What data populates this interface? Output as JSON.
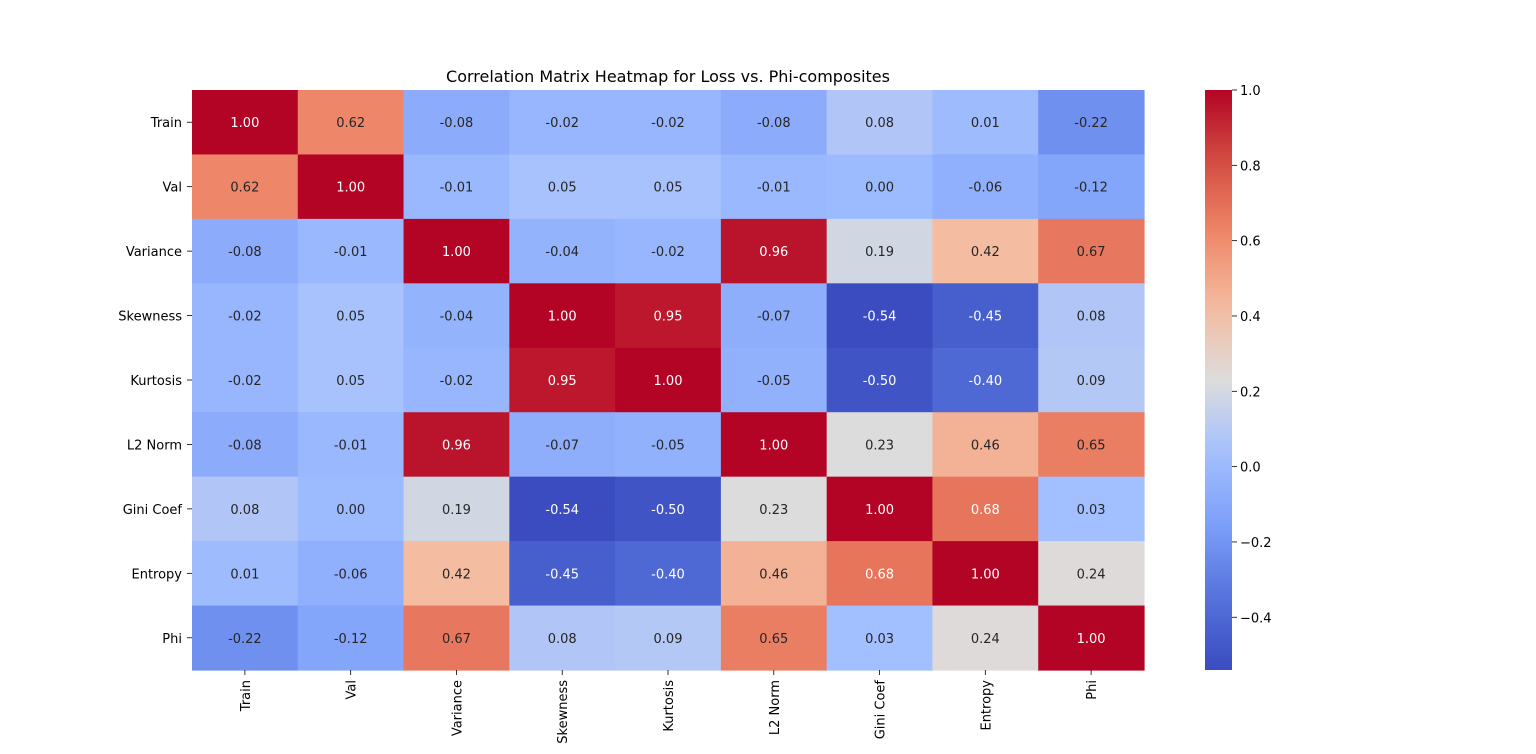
{
  "chart_data": {
    "type": "heatmap",
    "title": "Correlation Matrix Heatmap for Loss vs. Phi-composites",
    "xlabel": "",
    "ylabel": "",
    "row_labels": [
      "Train",
      "Val",
      "Variance",
      "Skewness",
      "Kurtosis",
      "L2 Norm",
      "Gini Coef",
      "Entropy",
      "Phi"
    ],
    "col_labels": [
      "Train",
      "Val",
      "Variance",
      "Skewness",
      "Kurtosis",
      "L2 Norm",
      "Gini Coef",
      "Entropy",
      "Phi"
    ],
    "values": [
      [
        1.0,
        0.62,
        -0.08,
        -0.02,
        -0.02,
        -0.08,
        0.08,
        0.01,
        -0.22
      ],
      [
        0.62,
        1.0,
        -0.01,
        0.05,
        0.05,
        -0.01,
        -0.0,
        -0.06,
        -0.12
      ],
      [
        -0.08,
        -0.01,
        1.0,
        -0.04,
        -0.02,
        0.96,
        0.19,
        0.42,
        0.67
      ],
      [
        -0.02,
        0.05,
        -0.04,
        1.0,
        0.95,
        -0.07,
        -0.54,
        -0.45,
        0.08
      ],
      [
        -0.02,
        0.05,
        -0.02,
        0.95,
        1.0,
        -0.05,
        -0.5,
        -0.4,
        0.09
      ],
      [
        -0.08,
        -0.01,
        0.96,
        -0.07,
        -0.05,
        1.0,
        0.23,
        0.46,
        0.65
      ],
      [
        0.08,
        -0.0,
        0.19,
        -0.54,
        -0.5,
        0.23,
        1.0,
        0.68,
        0.03
      ],
      [
        0.01,
        -0.06,
        0.42,
        -0.45,
        -0.4,
        0.46,
        0.68,
        1.0,
        0.24
      ],
      [
        -0.22,
        -0.12,
        0.67,
        0.08,
        0.09,
        0.65,
        0.03,
        0.24,
        1.0
      ]
    ],
    "value_format": "0.00",
    "colormap": "coolwarm",
    "vmin": -0.54,
    "vmax": 1.0,
    "colorbar": {
      "ticks": [
        1.0,
        0.8,
        0.6,
        0.4,
        0.2,
        0.0,
        -0.2,
        -0.4
      ],
      "tick_labels": [
        "1.0",
        "0.8",
        "0.6",
        "0.4",
        "0.2",
        "0.0",
        "−0.2",
        "−0.4"
      ]
    },
    "x_tick_rotation": "vertical",
    "grid": false,
    "legend": "colorbar-right"
  }
}
